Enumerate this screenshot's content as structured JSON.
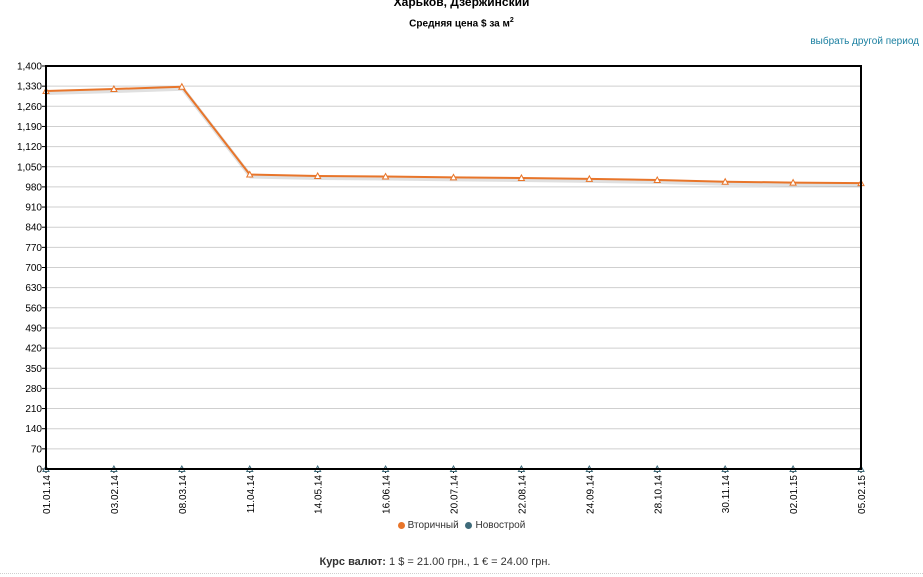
{
  "header": {
    "title": "Харьков, Дзержинский",
    "subtitle": "Средняя цена $ за м",
    "subtitle_sup": "2",
    "period_link": "выбрать другой период"
  },
  "chart_data": {
    "type": "line",
    "title": "Харьков, Дзержинский",
    "subtitle": "Средняя цена $ за м2",
    "xlabel": "",
    "ylabel": "",
    "categories": [
      "01.01.14",
      "03.02.14",
      "08.03.14",
      "11.04.14",
      "14.05.14",
      "16.06.14",
      "20.07.14",
      "22.08.14",
      "24.09.14",
      "28.10.14",
      "30.11.14",
      "02.01.15",
      "05.02.15"
    ],
    "y_ticks": [
      "0",
      "70",
      "140",
      "210",
      "280",
      "350",
      "420",
      "490",
      "560",
      "630",
      "700",
      "770",
      "840",
      "910",
      "980",
      "1,050",
      "1,120",
      "1,190",
      "1,260",
      "1,330",
      "1,400"
    ],
    "ylim": [
      0,
      1400
    ],
    "grid": true,
    "legend_position": "bottom",
    "series": [
      {
        "name": "Вторичный",
        "color": "#e8752a",
        "values": [
          1313,
          1320,
          1328,
          1023,
          1018,
          1016,
          1013,
          1011,
          1008,
          1004,
          998,
          995,
          993
        ]
      },
      {
        "name": "Новострой",
        "color": "#3f6b7a",
        "values": [
          0,
          0,
          0,
          0,
          0,
          0,
          0,
          0,
          0,
          0,
          0,
          0,
          0
        ]
      }
    ]
  },
  "footer": {
    "rate_label": "Курс валют:",
    "rate_value": "1 $ = 21.00 грн., 1 € = 24.00 грн."
  }
}
